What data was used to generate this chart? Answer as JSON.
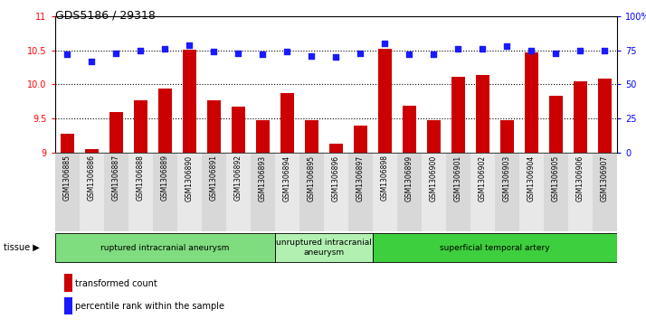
{
  "title": "GDS5186 / 29318",
  "samples": [
    "GSM1306885",
    "GSM1306886",
    "GSM1306887",
    "GSM1306888",
    "GSM1306889",
    "GSM1306890",
    "GSM1306891",
    "GSM1306892",
    "GSM1306893",
    "GSM1306894",
    "GSM1306895",
    "GSM1306896",
    "GSM1306897",
    "GSM1306898",
    "GSM1306899",
    "GSM1306900",
    "GSM1306901",
    "GSM1306902",
    "GSM1306903",
    "GSM1306904",
    "GSM1306905",
    "GSM1306906",
    "GSM1306907"
  ],
  "bar_values": [
    9.28,
    9.05,
    9.6,
    9.77,
    9.94,
    10.51,
    9.77,
    9.67,
    9.47,
    9.88,
    9.47,
    9.13,
    9.4,
    10.52,
    9.69,
    9.47,
    10.11,
    10.14,
    9.48,
    10.47,
    9.84,
    10.05,
    10.08
  ],
  "dot_values": [
    72,
    67,
    73,
    75,
    76,
    79,
    74,
    73,
    72,
    74,
    71,
    70,
    73,
    80,
    72,
    72,
    76,
    76,
    78,
    75,
    73,
    75,
    75
  ],
  "group_starts": [
    0,
    9,
    13
  ],
  "group_ends": [
    9,
    13,
    23
  ],
  "group_labels": [
    "ruptured intracranial aneurysm",
    "unruptured intracranial\naneurysm",
    "superficial temporal artery"
  ],
  "group_colors": [
    "#7fdd7f",
    "#b2f0b2",
    "#3ecf3e"
  ],
  "bar_color": "#CC0000",
  "dot_color": "#1a1aff",
  "ylim_left": [
    9.0,
    11.0
  ],
  "ylim_right": [
    0,
    100
  ],
  "yticks_left": [
    9.0,
    9.5,
    10.0,
    10.5,
    11.0
  ],
  "yticks_right": [
    0,
    25,
    50,
    75,
    100
  ],
  "ylabel_right_labels": [
    "0",
    "25",
    "50",
    "75",
    "100%"
  ],
  "grid_values": [
    9.5,
    10.0,
    10.5
  ],
  "legend_bar_label": "transformed count",
  "legend_dot_label": "percentile rank within the sample",
  "tissue_label": "tissue"
}
